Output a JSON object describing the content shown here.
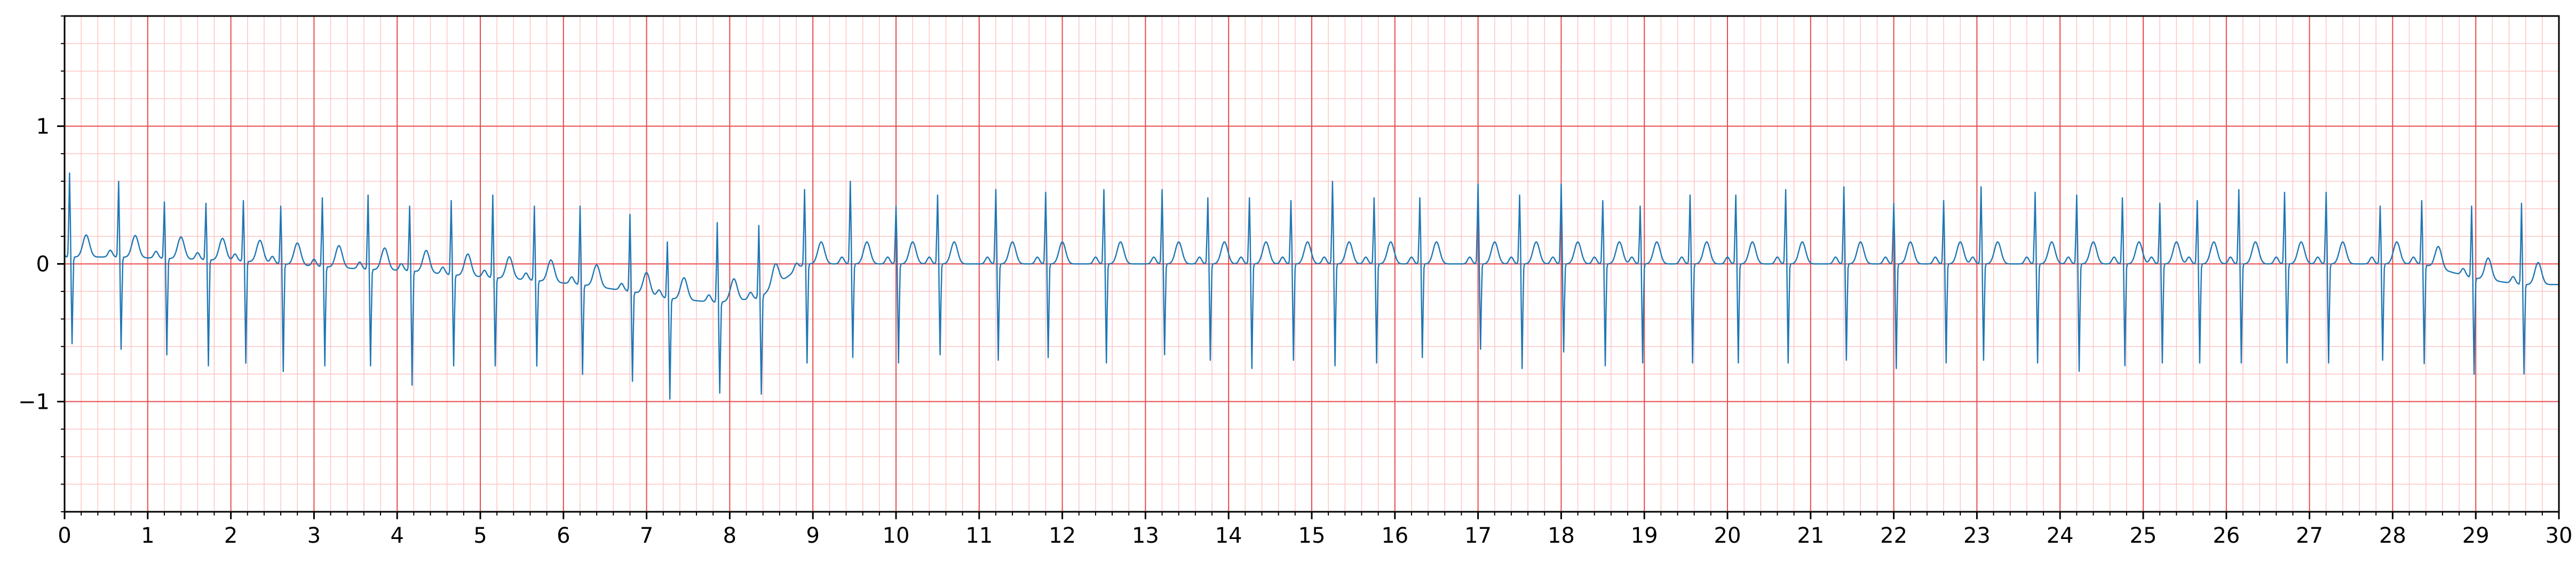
{
  "chart_data": {
    "type": "line",
    "title": "",
    "xlabel": "",
    "ylabel": "",
    "xlim": [
      0,
      30
    ],
    "ylim": [
      -1.8,
      1.8
    ],
    "x_ticks": [
      "0",
      "1",
      "2",
      "3",
      "4",
      "5",
      "6",
      "7",
      "8",
      "9",
      "10",
      "11",
      "12",
      "13",
      "14",
      "15",
      "16",
      "17",
      "18",
      "19",
      "20",
      "21",
      "22",
      "23",
      "24",
      "25",
      "26",
      "27",
      "28",
      "29",
      "30"
    ],
    "y_ticks": [
      {
        "value": 1,
        "label": "1"
      },
      {
        "value": 0,
        "label": "0"
      },
      {
        "value": -1,
        "label": "−1"
      }
    ],
    "grid": "ECG paper: major grid every 1 s / 1 unit, minor grid every 0.2 s / 0.2 unit",
    "sampling_rate_hz": 100,
    "series": [
      {
        "beats": [
          {
            "t": 0.06,
            "r": 0.66,
            "s": -0.58,
            "b": 0.05
          },
          {
            "t": 0.65,
            "r": 0.6,
            "s": -0.62,
            "b": 0.05
          },
          {
            "t": 1.2,
            "r": 0.45,
            "s": -0.66,
            "b": 0.04
          },
          {
            "t": 1.7,
            "r": 0.44,
            "s": -0.74,
            "b": 0.03
          },
          {
            "t": 2.15,
            "r": 0.46,
            "s": -0.72,
            "b": 0.02
          },
          {
            "t": 2.6,
            "r": 0.42,
            "s": -0.78,
            "b": 0.0
          },
          {
            "t": 3.1,
            "r": 0.48,
            "s": -0.74,
            "b": -0.02
          },
          {
            "t": 3.65,
            "r": 0.5,
            "s": -0.74,
            "b": -0.04
          },
          {
            "t": 4.15,
            "r": 0.42,
            "s": -0.88,
            "b": -0.05
          },
          {
            "t": 4.65,
            "r": 0.46,
            "s": -0.74,
            "b": -0.08
          },
          {
            "t": 5.15,
            "r": 0.5,
            "s": -0.74,
            "b": -0.1
          },
          {
            "t": 5.65,
            "r": 0.42,
            "s": -0.74,
            "b": -0.12
          },
          {
            "t": 6.2,
            "r": 0.42,
            "s": -0.8,
            "b": -0.15
          },
          {
            "t": 6.8,
            "r": 0.36,
            "s": -0.85,
            "b": -0.2
          },
          {
            "t": 7.25,
            "r": 0.16,
            "s": -0.98,
            "b": -0.25
          },
          {
            "t": 7.85,
            "r": 0.3,
            "s": -0.94,
            "b": -0.28
          },
          {
            "t": 8.35,
            "r": 0.28,
            "s": -0.96,
            "b": -0.25
          },
          {
            "t": 8.9,
            "r": 0.54,
            "s": -0.72,
            "b": 0.0
          },
          {
            "t": 9.45,
            "r": 0.6,
            "s": -0.68,
            "b": 0.0
          },
          {
            "t": 10.0,
            "r": 0.42,
            "s": -0.72,
            "b": 0.0
          },
          {
            "t": 10.5,
            "r": 0.5,
            "s": -0.66,
            "b": 0.0
          },
          {
            "t": 11.2,
            "r": 0.54,
            "s": -0.7,
            "b": 0.0
          },
          {
            "t": 11.8,
            "r": 0.52,
            "s": -0.68,
            "b": 0.0
          },
          {
            "t": 12.5,
            "r": 0.54,
            "s": -0.72,
            "b": 0.0
          },
          {
            "t": 13.2,
            "r": 0.54,
            "s": -0.66,
            "b": 0.0
          },
          {
            "t": 13.75,
            "r": 0.48,
            "s": -0.7,
            "b": 0.0
          },
          {
            "t": 14.25,
            "r": 0.48,
            "s": -0.76,
            "b": 0.0
          },
          {
            "t": 14.75,
            "r": 0.46,
            "s": -0.7,
            "b": 0.0
          },
          {
            "t": 15.25,
            "r": 0.6,
            "s": -0.74,
            "b": 0.0
          },
          {
            "t": 15.75,
            "r": 0.48,
            "s": -0.72,
            "b": 0.0
          },
          {
            "t": 16.3,
            "r": 0.48,
            "s": -0.68,
            "b": 0.0
          },
          {
            "t": 17.0,
            "r": 0.58,
            "s": -0.62,
            "b": 0.0
          },
          {
            "t": 17.5,
            "r": 0.5,
            "s": -0.76,
            "b": 0.0
          },
          {
            "t": 18.0,
            "r": 0.58,
            "s": -0.64,
            "b": 0.0
          },
          {
            "t": 18.5,
            "r": 0.46,
            "s": -0.74,
            "b": 0.0
          },
          {
            "t": 18.95,
            "r": 0.42,
            "s": -0.72,
            "b": 0.0
          },
          {
            "t": 19.55,
            "r": 0.5,
            "s": -0.72,
            "b": 0.0
          },
          {
            "t": 20.1,
            "r": 0.5,
            "s": -0.72,
            "b": 0.0
          },
          {
            "t": 20.7,
            "r": 0.54,
            "s": -0.72,
            "b": 0.0
          },
          {
            "t": 21.4,
            "r": 0.56,
            "s": -0.7,
            "b": 0.0
          },
          {
            "t": 22.0,
            "r": 0.44,
            "s": -0.76,
            "b": 0.0
          },
          {
            "t": 22.6,
            "r": 0.46,
            "s": -0.72,
            "b": 0.0
          },
          {
            "t": 23.05,
            "r": 0.56,
            "s": -0.7,
            "b": 0.0
          },
          {
            "t": 23.7,
            "r": 0.52,
            "s": -0.72,
            "b": 0.0
          },
          {
            "t": 24.2,
            "r": 0.5,
            "s": -0.78,
            "b": 0.0
          },
          {
            "t": 24.75,
            "r": 0.48,
            "s": -0.74,
            "b": 0.0
          },
          {
            "t": 25.2,
            "r": 0.44,
            "s": -0.72,
            "b": 0.0
          },
          {
            "t": 25.65,
            "r": 0.46,
            "s": -0.72,
            "b": 0.0
          },
          {
            "t": 26.15,
            "r": 0.54,
            "s": -0.72,
            "b": 0.0
          },
          {
            "t": 26.7,
            "r": 0.52,
            "s": -0.72,
            "b": 0.0
          },
          {
            "t": 27.2,
            "r": 0.52,
            "s": -0.72,
            "b": 0.0
          },
          {
            "t": 27.85,
            "r": 0.42,
            "s": -0.7,
            "b": 0.0
          },
          {
            "t": 28.35,
            "r": 0.46,
            "s": -0.72,
            "b": 0.0
          },
          {
            "t": 28.95,
            "r": 0.42,
            "s": -0.8,
            "b": -0.1
          },
          {
            "t": 29.55,
            "r": 0.44,
            "s": -0.8,
            "b": -0.15
          }
        ]
      }
    ],
    "colors": {
      "trace": "#1f77b4",
      "major_grid": "#e84a4a",
      "minor_grid": "#ffc4c4",
      "frame": "#000000",
      "background": "#ffffff"
    }
  }
}
